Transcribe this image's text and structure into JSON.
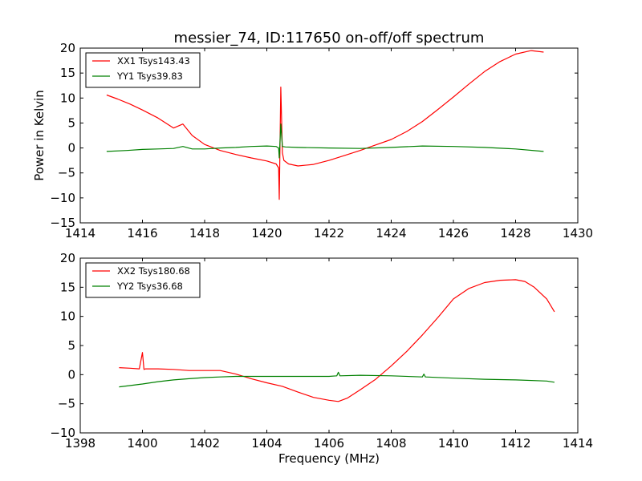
{
  "figure": {
    "title": "messier_74, ID:117650 on-off/off spectrum",
    "ylabel": "Power in Kelvin",
    "xlabel": "Frequency (MHz)"
  },
  "chart_data": [
    {
      "type": "line",
      "title": "messier_74, ID:117650 on-off/off spectrum",
      "xlabel": "",
      "ylabel": "Power in Kelvin",
      "xlim": [
        1414,
        1430
      ],
      "ylim": [
        -15,
        20
      ],
      "xticks": [
        1414,
        1416,
        1418,
        1420,
        1422,
        1424,
        1426,
        1428,
        1430
      ],
      "yticks": [
        -15,
        -10,
        -5,
        0,
        5,
        10,
        15,
        20
      ],
      "grid": false,
      "legend": "top-left",
      "series": [
        {
          "name": "XX1 Tsys143.43",
          "color": "#ff0000",
          "x": [
            1414.85,
            1415.2,
            1415.6,
            1416.0,
            1416.5,
            1417.0,
            1417.3,
            1417.6,
            1418.0,
            1418.5,
            1419.0,
            1419.5,
            1420.0,
            1420.3,
            1420.38,
            1420.4,
            1420.45,
            1420.5,
            1420.55,
            1420.7,
            1421.0,
            1421.5,
            1422.0,
            1422.5,
            1423.0,
            1423.5,
            1424.0,
            1424.5,
            1425.0,
            1425.5,
            1426.0,
            1426.5,
            1427.0,
            1427.5,
            1428.0,
            1428.5,
            1428.9
          ],
          "y": [
            10.6,
            9.8,
            8.8,
            7.6,
            6.0,
            4.0,
            4.8,
            2.5,
            0.7,
            -0.5,
            -1.3,
            -2.0,
            -2.6,
            -3.2,
            -4.0,
            -10.3,
            12.2,
            -1.0,
            -2.5,
            -3.2,
            -3.6,
            -3.3,
            -2.5,
            -1.5,
            -0.5,
            0.6,
            1.7,
            3.3,
            5.3,
            7.7,
            10.2,
            12.8,
            15.3,
            17.3,
            18.8,
            19.5,
            19.2
          ]
        },
        {
          "name": "YY1 Tsys39.83",
          "color": "#008000",
          "x": [
            1414.85,
            1415.5,
            1416.0,
            1416.5,
            1417.0,
            1417.3,
            1417.6,
            1418.0,
            1418.5,
            1419.0,
            1419.5,
            1420.0,
            1420.3,
            1420.38,
            1420.4,
            1420.45,
            1420.5,
            1420.6,
            1421.0,
            1422.0,
            1423.0,
            1424.0,
            1425.0,
            1426.0,
            1427.0,
            1428.0,
            1428.9
          ],
          "y": [
            -0.7,
            -0.5,
            -0.3,
            -0.2,
            -0.1,
            0.3,
            -0.2,
            -0.2,
            0.0,
            0.1,
            0.3,
            0.4,
            0.3,
            0.0,
            -2.0,
            4.8,
            0.3,
            0.2,
            0.1,
            0.0,
            -0.1,
            0.1,
            0.4,
            0.3,
            0.1,
            -0.2,
            -0.7
          ]
        }
      ]
    },
    {
      "type": "line",
      "title": "",
      "xlabel": "Frequency (MHz)",
      "ylabel": "",
      "xlim": [
        1398,
        1414
      ],
      "ylim": [
        -10,
        20
      ],
      "xticks": [
        1398,
        1400,
        1402,
        1404,
        1406,
        1408,
        1410,
        1412,
        1414
      ],
      "yticks": [
        -10,
        -5,
        0,
        5,
        10,
        15,
        20
      ],
      "grid": false,
      "legend": "top-left",
      "series": [
        {
          "name": "XX2 Tsys180.68",
          "color": "#ff0000",
          "x": [
            1399.25,
            1399.6,
            1399.9,
            1400.0,
            1400.05,
            1400.1,
            1400.5,
            1401.0,
            1401.5,
            1402.0,
            1402.5,
            1403.0,
            1403.5,
            1404.0,
            1404.5,
            1405.0,
            1405.5,
            1406.0,
            1406.3,
            1406.6,
            1407.0,
            1407.5,
            1408.0,
            1408.5,
            1409.0,
            1409.5,
            1410.0,
            1410.5,
            1411.0,
            1411.5,
            1412.0,
            1412.3,
            1412.6,
            1413.0,
            1413.25
          ],
          "y": [
            1.2,
            1.1,
            1.0,
            3.8,
            0.9,
            1.0,
            1.0,
            0.9,
            0.7,
            0.7,
            0.7,
            0.1,
            -0.7,
            -1.4,
            -2.0,
            -3.0,
            -3.9,
            -4.4,
            -4.6,
            -4.0,
            -2.6,
            -0.8,
            1.5,
            4.0,
            6.8,
            9.8,
            13.0,
            14.8,
            15.8,
            16.2,
            16.3,
            16.0,
            15.0,
            13.0,
            10.8
          ]
        },
        {
          "name": "YY2 Tsys36.68",
          "color": "#008000",
          "x": [
            1399.25,
            1400.0,
            1400.5,
            1401.0,
            1401.5,
            1402.0,
            1402.5,
            1403.0,
            1403.5,
            1404.0,
            1405.0,
            1406.0,
            1406.25,
            1406.3,
            1406.35,
            1407.0,
            1408.0,
            1409.0,
            1409.05,
            1409.1,
            1410.0,
            1411.0,
            1412.0,
            1413.0,
            1413.25
          ],
          "y": [
            -2.1,
            -1.6,
            -1.2,
            -0.9,
            -0.7,
            -0.5,
            -0.4,
            -0.3,
            -0.3,
            -0.3,
            -0.3,
            -0.3,
            -0.2,
            0.4,
            -0.2,
            -0.1,
            -0.2,
            -0.4,
            0.1,
            -0.4,
            -0.6,
            -0.8,
            -0.9,
            -1.1,
            -1.3
          ]
        }
      ]
    }
  ]
}
